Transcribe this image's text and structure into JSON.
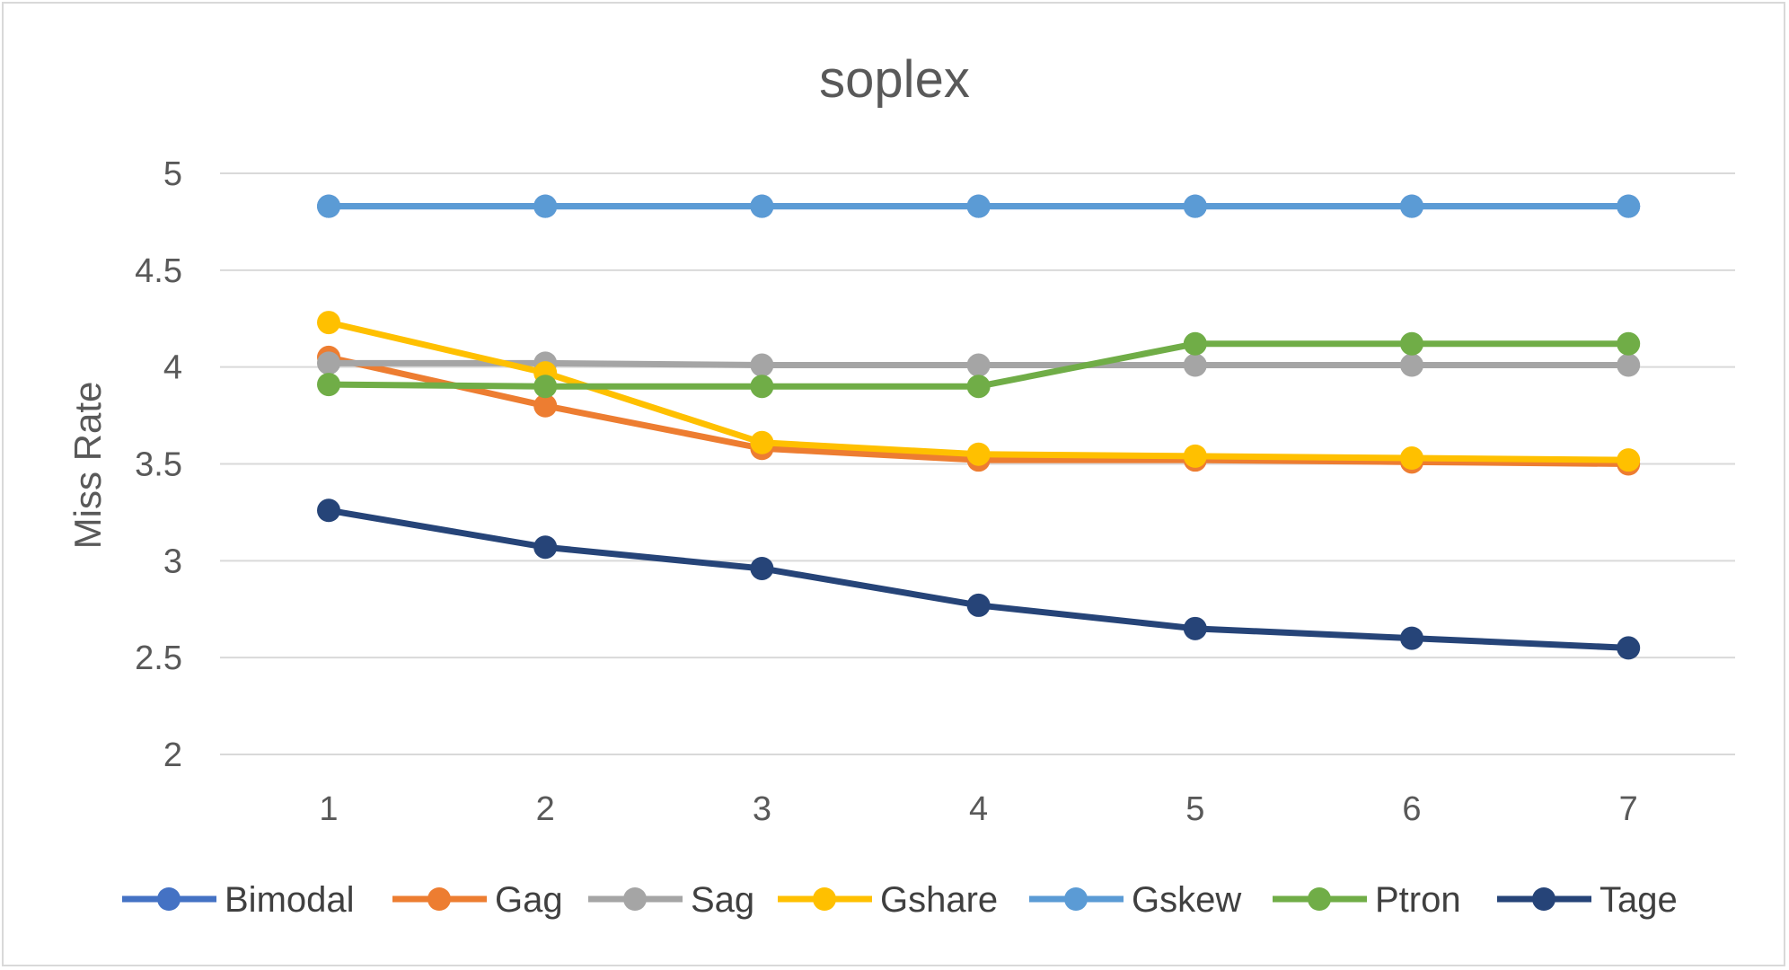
{
  "chart_data": {
    "type": "line",
    "title": "soplex",
    "xlabel": "",
    "ylabel": "Miss Rate",
    "x": [
      1,
      2,
      3,
      4,
      5,
      6,
      7
    ],
    "ylim": [
      2,
      5
    ],
    "yticks": [
      2,
      2.5,
      3,
      3.5,
      4,
      4.5,
      5
    ],
    "ytick_labels": [
      "2",
      "2.5",
      "3",
      "3.5",
      "4",
      "4.5",
      "5"
    ],
    "xtick_labels": [
      "1",
      "2",
      "3",
      "4",
      "5",
      "6",
      "7"
    ],
    "grid": "horizontal",
    "legend_position": "bottom",
    "series": [
      {
        "name": "Bimodal",
        "color": "#4472c4",
        "values": [
          4.83,
          4.83,
          4.83,
          4.83,
          4.83,
          4.83,
          4.83
        ]
      },
      {
        "name": "Gag",
        "color": "#ed7d31",
        "values": [
          4.05,
          3.8,
          3.58,
          3.52,
          3.52,
          3.51,
          3.5
        ]
      },
      {
        "name": "Sag",
        "color": "#a5a5a5",
        "values": [
          4.02,
          4.02,
          4.01,
          4.01,
          4.01,
          4.01,
          4.01
        ]
      },
      {
        "name": "Gshare",
        "color": "#ffc000",
        "values": [
          4.23,
          3.97,
          3.61,
          3.55,
          3.54,
          3.53,
          3.52
        ]
      },
      {
        "name": "Gskew",
        "color": "#5b9bd5",
        "values": [
          4.83,
          4.83,
          4.83,
          4.83,
          4.83,
          4.83,
          4.83
        ]
      },
      {
        "name": "Ptron",
        "color": "#70ad47",
        "values": [
          3.91,
          3.9,
          3.9,
          3.9,
          4.12,
          4.12,
          4.12
        ]
      },
      {
        "name": "Tage",
        "color": "#264478",
        "values": [
          3.26,
          3.07,
          2.96,
          2.77,
          2.65,
          2.6,
          2.55
        ]
      }
    ]
  }
}
